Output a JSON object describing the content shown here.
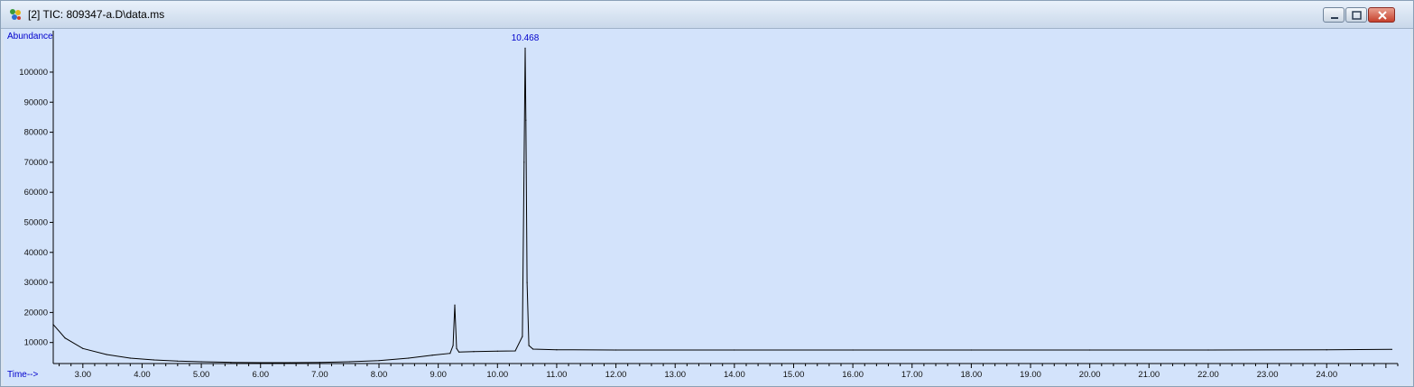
{
  "window": {
    "title": "[2] TIC: 809347-a.D\\data.ms",
    "controls": [
      "minimize-icon",
      "maximize-icon",
      "close-icon"
    ],
    "accent": "#d3e3fb",
    "close_color": "#c6402c"
  },
  "chart_data": {
    "type": "line",
    "ylabel": "Abundance",
    "xlabel": "Time-->",
    "xlim": [
      2.5,
      25.2
    ],
    "ylim": [
      3000,
      112000
    ],
    "x_ticks": [
      "3.00",
      "4.00",
      "5.00",
      "6.00",
      "7.00",
      "8.00",
      "9.00",
      "10.00",
      "11.00",
      "12.00",
      "13.00",
      "14.00",
      "15.00",
      "16.00",
      "17.00",
      "18.00",
      "19.00",
      "20.00",
      "21.00",
      "22.00",
      "23.00",
      "24.00"
    ],
    "y_ticks": [
      "10000",
      "20000",
      "30000",
      "40000",
      "50000",
      "60000",
      "70000",
      "80000",
      "90000",
      "100000"
    ],
    "series": [
      {
        "x": [
          2.5,
          2.7,
          3.0,
          3.4,
          3.8,
          4.2,
          4.6,
          5.0,
          5.5,
          6.0,
          6.5,
          7.0,
          7.5,
          8.0,
          8.5,
          8.9,
          9.2,
          9.25,
          9.28,
          9.31,
          9.35,
          9.6,
          10.0,
          10.3,
          10.42,
          10.45,
          10.468,
          10.48,
          10.5,
          10.53,
          10.6,
          11.0,
          12.0,
          14.0,
          16.0,
          18.0,
          20.0,
          22.0,
          24.0,
          25.1
        ],
        "y": [
          16000,
          11500,
          8000,
          6000,
          4800,
          4200,
          3800,
          3600,
          3400,
          3300,
          3300,
          3400,
          3600,
          4000,
          4800,
          5800,
          6400,
          9000,
          22500,
          8000,
          6800,
          7000,
          7100,
          7200,
          12000,
          70000,
          108000,
          84000,
          30000,
          9000,
          7800,
          7600,
          7500,
          7500,
          7500,
          7500,
          7500,
          7500,
          7600,
          7700
        ]
      }
    ],
    "annotations": [
      {
        "x": 10.468,
        "text": "10.468"
      }
    ],
    "colors": {
      "line": "#000000",
      "background": "#d3e3fb",
      "label": "#0000cc"
    }
  }
}
